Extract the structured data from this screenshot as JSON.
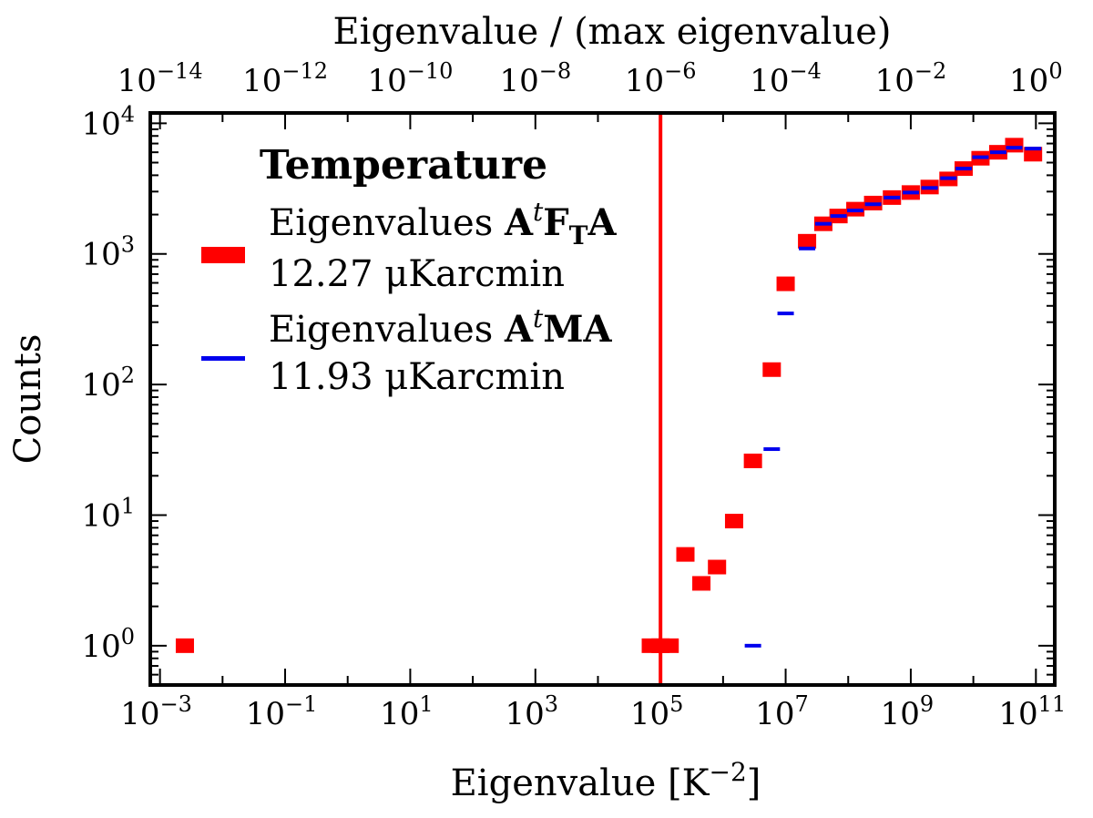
{
  "chart_data": {
    "type": "scatter",
    "xscale": "log",
    "yscale": "log",
    "xlabel": "Eigenvalue [K",
    "xlabel_sup": "−2",
    "xlabel_end": "]",
    "ylabel": "Counts",
    "top_xlabel": "Eigenvalue / (max eigenvalue)",
    "xlim": [
      0.0007,
      200000000000
    ],
    "ylim": [
      0.5,
      12000
    ],
    "x_ticks": [
      {
        "base": "10",
        "exp": "−3",
        "value": 0.001
      },
      {
        "base": "10",
        "exp": "−1",
        "value": 0.1
      },
      {
        "base": "10",
        "exp": "1",
        "value": 10
      },
      {
        "base": "10",
        "exp": "3",
        "value": 1000
      },
      {
        "base": "10",
        "exp": "5",
        "value": 100000
      },
      {
        "base": "10",
        "exp": "7",
        "value": 10000000
      },
      {
        "base": "10",
        "exp": "9",
        "value": 1000000000
      },
      {
        "base": "10",
        "exp": "11",
        "value": 100000000000
      }
    ],
    "y_ticks": [
      {
        "base": "10",
        "exp": "0",
        "value": 1
      },
      {
        "base": "10",
        "exp": "1",
        "value": 10
      },
      {
        "base": "10",
        "exp": "2",
        "value": 100
      },
      {
        "base": "10",
        "exp": "3",
        "value": 1000
      },
      {
        "base": "10",
        "exp": "4",
        "value": 10000
      }
    ],
    "top_ticks": [
      {
        "base": "10",
        "exp": "−14",
        "value": 1e-14
      },
      {
        "base": "10",
        "exp": "−12",
        "value": 1e-12
      },
      {
        "base": "10",
        "exp": "−10",
        "value": 1e-10
      },
      {
        "base": "10",
        "exp": "−8",
        "value": 1e-08
      },
      {
        "base": "10",
        "exp": "−6",
        "value": 1e-06
      },
      {
        "base": "10",
        "exp": "−4",
        "value": 0.0001
      },
      {
        "base": "10",
        "exp": "−2",
        "value": 0.01
      },
      {
        "base": "10",
        "exp": "0",
        "value": 1
      }
    ],
    "top_axis_max_eigenvalue": 100000000000,
    "vline_x": 100000,
    "vline_color": "#ff0000",
    "legend": {
      "title": "Temperature",
      "entries": [
        {
          "label": "Eigenvalues A",
          "sup": "t",
          "label2": "F",
          "sub": "T",
          "label3": "A",
          "sublabel": "12.27 μKarcmin",
          "color": "#ff0000",
          "marker": "square"
        },
        {
          "label": "Eigenvalues A",
          "sup": "t",
          "label2": "MA",
          "sub": "",
          "label3": "",
          "sublabel": "11.93 μKarcmin",
          "color": "#0000ee",
          "marker": "dash"
        }
      ]
    },
    "series": [
      {
        "name": "Eigenvalues AtFTA",
        "color": "#ff0000",
        "marker": "square",
        "points": [
          {
            "x": 0.0025,
            "y": 1
          },
          {
            "x": 70000,
            "y": 1
          },
          {
            "x": 100000,
            "y": 1
          },
          {
            "x": 140000,
            "y": 1
          },
          {
            "x": 250000,
            "y": 5
          },
          {
            "x": 450000,
            "y": 3
          },
          {
            "x": 800000,
            "y": 4
          },
          {
            "x": 1500000,
            "y": 9
          },
          {
            "x": 3000000,
            "y": 26
          },
          {
            "x": 6000000,
            "y": 130
          },
          {
            "x": 10000000,
            "y": 590
          },
          {
            "x": 22000000,
            "y": 1250
          },
          {
            "x": 40000000,
            "y": 1700
          },
          {
            "x": 70000000,
            "y": 1950
          },
          {
            "x": 130000000,
            "y": 2200
          },
          {
            "x": 250000000,
            "y": 2450
          },
          {
            "x": 500000000,
            "y": 2700
          },
          {
            "x": 1000000000,
            "y": 2950
          },
          {
            "x": 2000000000,
            "y": 3250
          },
          {
            "x": 4000000000,
            "y": 3750
          },
          {
            "x": 7000000000,
            "y": 4500
          },
          {
            "x": 13000000000,
            "y": 5400
          },
          {
            "x": 25000000000,
            "y": 6000
          },
          {
            "x": 45000000000,
            "y": 6800
          },
          {
            "x": 90000000000,
            "y": 5800
          }
        ]
      },
      {
        "name": "Eigenvalues AtMA",
        "color": "#0000ee",
        "marker": "dash",
        "points": [
          {
            "x": 3000000,
            "y": 1
          },
          {
            "x": 6000000,
            "y": 32
          },
          {
            "x": 10000000,
            "y": 350
          },
          {
            "x": 22000000,
            "y": 1100
          },
          {
            "x": 40000000,
            "y": 1700
          },
          {
            "x": 70000000,
            "y": 1950
          },
          {
            "x": 130000000,
            "y": 2150
          },
          {
            "x": 250000000,
            "y": 2400
          },
          {
            "x": 500000000,
            "y": 2700
          },
          {
            "x": 1000000000,
            "y": 2950
          },
          {
            "x": 2000000000,
            "y": 3200
          },
          {
            "x": 4000000000,
            "y": 3800
          },
          {
            "x": 7000000000,
            "y": 4500
          },
          {
            "x": 13000000000,
            "y": 5500
          },
          {
            "x": 25000000000,
            "y": 6000
          },
          {
            "x": 45000000000,
            "y": 6500
          },
          {
            "x": 90000000000,
            "y": 6400
          }
        ]
      }
    ]
  }
}
